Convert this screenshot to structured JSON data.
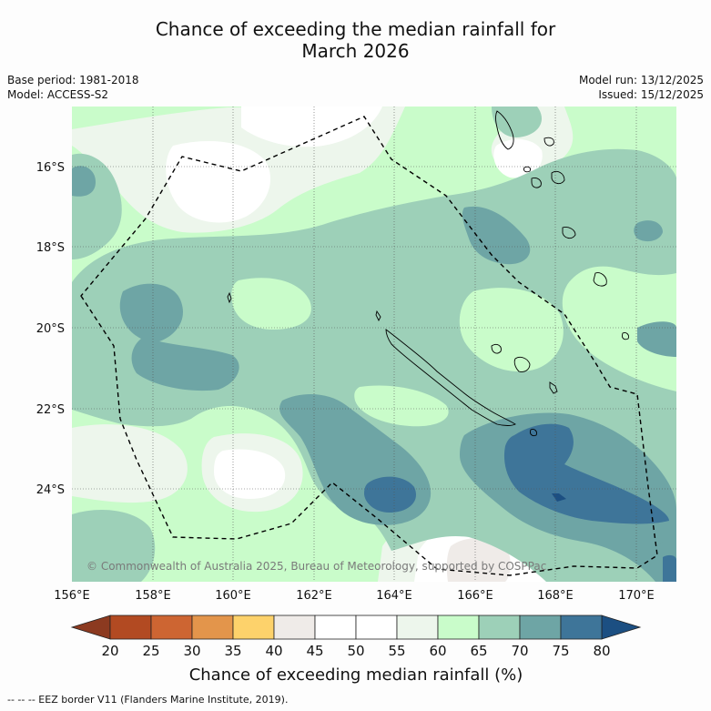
{
  "title": {
    "line1": "Chance of exceeding the median rainfall for",
    "line2": "March 2026"
  },
  "meta_left": {
    "base_period": "Base period: 1981-2018",
    "model": "Model: ACCESS-S2"
  },
  "meta_right": {
    "model_run": "Model run: 13/12/2025",
    "issued": "Issued: 15/12/2025"
  },
  "map": {
    "lon_labels": [
      "156°E",
      "158°E",
      "160°E",
      "162°E",
      "164°E",
      "166°E",
      "168°E",
      "170°E"
    ],
    "lat_labels": [
      "16°S",
      "18°S",
      "20°S",
      "22°S",
      "24°S"
    ],
    "copyright": "© Commonwealth of Australia 2025, Bureau of Meteorology, supported by COSPPac",
    "land_color": "#000000",
    "eez_color": "#000000"
  },
  "colorbar": {
    "ticks": [
      "20",
      "25",
      "30",
      "35",
      "40",
      "45",
      "50",
      "55",
      "60",
      "65",
      "70",
      "75",
      "80"
    ],
    "colors": [
      "#b24a22",
      "#cd6532",
      "#e3954b",
      "#fdd26b",
      "#efebe8",
      "#ffffff",
      "#ffffff",
      "#edf6ec",
      "#c9fcca",
      "#9dd0b8",
      "#6ea5a5",
      "#3e7599"
    ],
    "under_color": "#8c3a20",
    "over_color": "#1c4f82",
    "label": "Chance of exceeding median rainfall (%)"
  },
  "footer": {
    "legend_text": "-- -- -- EEZ border V11 (Flanders Marine Institute, 2019)."
  }
}
